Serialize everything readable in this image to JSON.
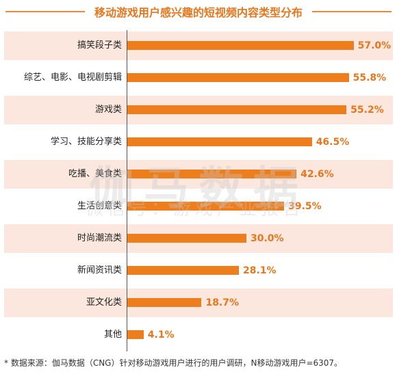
{
  "header": {
    "title": "移动游戏用户感兴趣的短视频内容类型分布"
  },
  "chart_data": {
    "type": "bar",
    "orientation": "horizontal",
    "title": "移动游戏用户感兴趣的短视频内容类型分布",
    "categories": [
      "搞笑段子类",
      "综艺、电影、电视剧剪辑",
      "游戏类",
      "学习、技能分享类",
      "吃播、美食类",
      "生活创意类",
      "时尚潮流类",
      "新闻资讯类",
      "亚文化类",
      "其他"
    ],
    "values": [
      57.0,
      55.8,
      55.2,
      46.5,
      42.6,
      39.5,
      30.0,
      28.1,
      18.7,
      4.1
    ],
    "value_labels": [
      "57.0%",
      "55.8%",
      "55.2%",
      "46.5%",
      "42.6%",
      "39.5%",
      "30.0%",
      "28.1%",
      "18.7%",
      "4.1%"
    ],
    "unit": "%",
    "xlim": [
      0,
      60
    ],
    "grid": false,
    "bar_color": "#ee7d1b",
    "stripe_color": "#fbe7dd"
  },
  "watermark": {
    "main": "伽马数据",
    "sub": "微信号：游戏产业报告"
  },
  "footnote": "* 数据来源：伽马数据（CNG）针对移动游戏用户进行的用户调研，N移动游戏用户=6307。"
}
